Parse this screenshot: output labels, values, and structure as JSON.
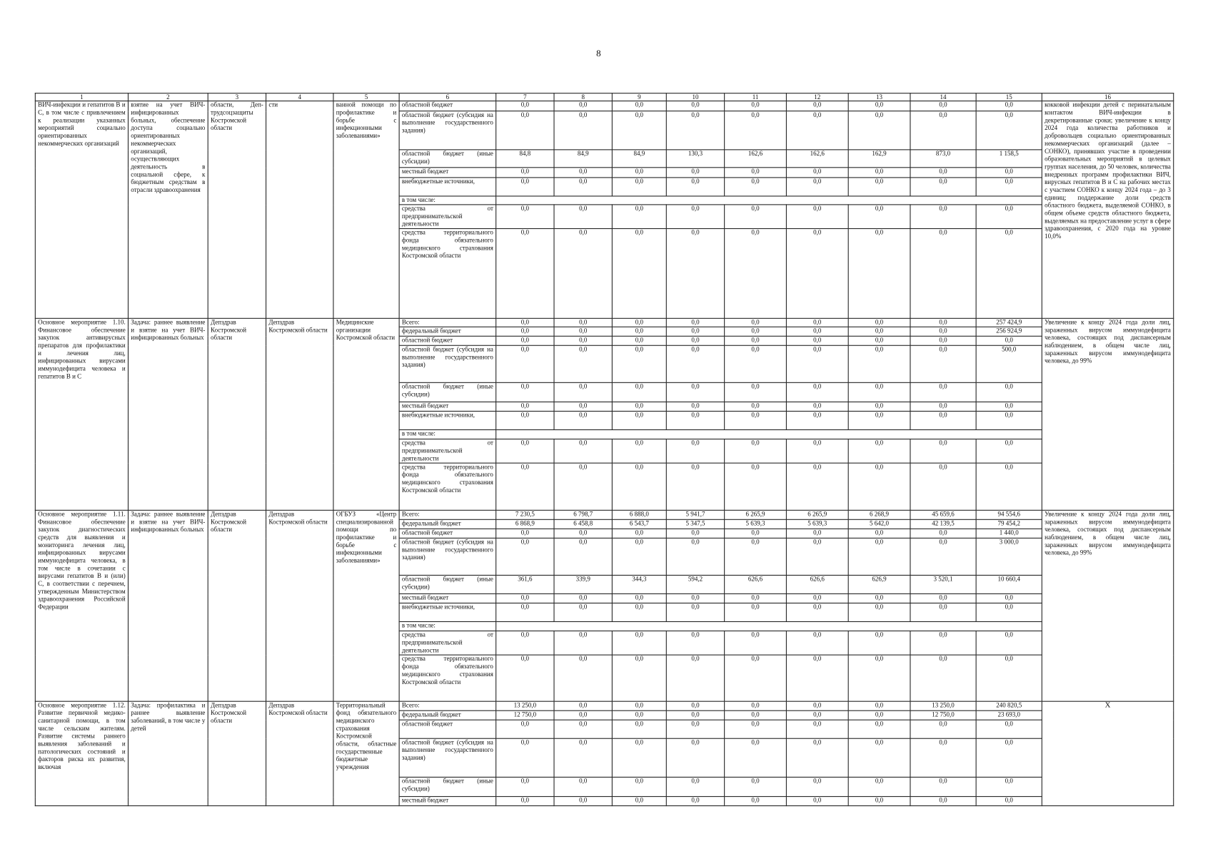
{
  "page_number": "8",
  "header": [
    "1",
    "2",
    "3",
    "4",
    "5",
    "6",
    "7",
    "8",
    "9",
    "10",
    "11",
    "12",
    "13",
    "14",
    "15",
    "16"
  ],
  "blocks": [
    {
      "c1": "ВИЧ-инфекции и гепатитов В и С, в том числе с привлечением к реализации указанных мероприятий социально ориентированных некоммерческих организаций",
      "c2": "взятие на учет ВИЧ-инфицированных больных, обеспечение доступа социально ориентированных некоммерческих организаций, осуществляющих деятельность в социальной сфере, к бюджетным средствам в отрасли здравоохранения",
      "c3": "области, Деп-трудсоцзащиты Костромской области",
      "c4": "сти",
      "c5": "ванной помощи по профилактике и борьбе с инфекционными заболеваниями»",
      "c16": "кокковой инфекции детей с перинатальным контактом ВИЧ-инфекции в декретированные сроки; увеличение к концу 2024 года количества работников и добровольцев социально ориентированных некоммерческих организаций (далее – СОНКО), принявших участие в проведении образовательных мероприятий в целевых группах населения, до 50 человек, количества внедренных программ профилактики ВИЧ, вирусных гепатитов В и С на рабочих местах с участием СОНКО к концу 2024 года – до 3 единиц; поддержание доли средств областного бюджета, выделяемой СОНКО, в общем объеме средств областного бюджета, выделяемых на предоставление услуг в сфере здравоохранения, с 2020 года на уровне 10,0%",
      "rows": [
        {
          "label": "областной бюджет",
          "values": [
            "0,0",
            "0,0",
            "0,0",
            "0,0",
            "0,0",
            "0,0",
            "0,0",
            "0,0",
            "0,0"
          ]
        },
        {
          "label": "областной бюджет (субсидия на выполнение государственного задания)",
          "values": [
            "0,0",
            "0,0",
            "0,0",
            "0,0",
            "0,0",
            "0,0",
            "0,0",
            "0,0",
            "0,0"
          ]
        },
        {
          "label": "областной бюджет (иные субсидии)",
          "values": [
            "84,8",
            "84,9",
            "84,9",
            "130,3",
            "162,6",
            "162,6",
            "162,9",
            "873,0",
            "1 158,5"
          ]
        },
        {
          "label": "местный бюджет",
          "values": [
            "0,0",
            "0,0",
            "0,0",
            "0,0",
            "0,0",
            "0,0",
            "0,0",
            "0,0",
            "0,0"
          ]
        },
        {
          "label": "внебюджетные источники,",
          "values": [
            "0,0",
            "0,0",
            "0,0",
            "0,0",
            "0,0",
            "0,0",
            "0,0",
            "0,0",
            "0,0"
          ]
        },
        {
          "label": "в том числе:"
        },
        {
          "label": "средства от предпринимательской деятельности",
          "values": [
            "0,0",
            "0,0",
            "0,0",
            "0,0",
            "0,0",
            "0,0",
            "0,0",
            "0,0",
            "0,0"
          ]
        },
        {
          "label": "средства территориального фонда обязательного медицинского страхования Костромской области",
          "values": [
            "0,0",
            "0,0",
            "0,0",
            "0,0",
            "0,0",
            "0,0",
            "0,0",
            "0,0",
            "0,0"
          ]
        }
      ]
    },
    {
      "c1": "Основное мероприятие 1.10. Финансовое обеспечение закупок антивирусных препаратов для профилактики и лечения лиц, инфицированных вирусами иммунодефицита человека и гепатитов В и С",
      "c2": "Задача: раннее выявление и взятие на учет ВИЧ-инфицированных больных",
      "c3": "Депздрав Костромской области",
      "c4": "Депздрав Костромской области",
      "c5": "Медицинские организации Костромской области",
      "c16": "Увеличение к концу 2024 года доли лиц, зараженных вирусом иммунодефицита человека, состоящих под диспансерным наблюдением, в общем числе лиц, зараженных вирусом иммунодефицита человека, до 99%",
      "rows": [
        {
          "label": "Всего:",
          "values": [
            "0,0",
            "0,0",
            "0,0",
            "0,0",
            "0,0",
            "0,0",
            "0,0",
            "0,0",
            "257 424,9"
          ]
        },
        {
          "label": "федеральный бюджет",
          "values": [
            "0,0",
            "0,0",
            "0,0",
            "0,0",
            "0,0",
            "0,0",
            "0,0",
            "0,0",
            "256 924,9"
          ]
        },
        {
          "label": "областной бюджет",
          "values": [
            "0,0",
            "0,0",
            "0,0",
            "0,0",
            "0,0",
            "0,0",
            "0,0",
            "0,0",
            "0,0"
          ]
        },
        {
          "label": "областной бюджет (субсидия на выполнение государственного задания)",
          "values": [
            "0,0",
            "0,0",
            "0,0",
            "0,0",
            "0,0",
            "0,0",
            "0,0",
            "0,0",
            "500,0"
          ]
        },
        {
          "label": "областной бюджет (иные субсидии)",
          "values": [
            "0,0",
            "0,0",
            "0,0",
            "0,0",
            "0,0",
            "0,0",
            "0,0",
            "0,0",
            "0,0"
          ]
        },
        {
          "label": "местный бюджет",
          "values": [
            "0,0",
            "0,0",
            "0,0",
            "0,0",
            "0,0",
            "0,0",
            "0,0",
            "0,0",
            "0,0"
          ]
        },
        {
          "label": "внебюджетные источники,",
          "values": [
            "0,0",
            "0,0",
            "0,0",
            "0,0",
            "0,0",
            "0,0",
            "0,0",
            "0,0",
            "0,0"
          ]
        },
        {
          "label": "в том числе:"
        },
        {
          "label": "средства от предпринимательской деятельности",
          "values": [
            "0,0",
            "0,0",
            "0,0",
            "0,0",
            "0,0",
            "0,0",
            "0,0",
            "0,0",
            "0,0"
          ]
        },
        {
          "label": "средства территориального фонда обязательного медицинского страхования Костромской области",
          "values": [
            "0,0",
            "0,0",
            "0,0",
            "0,0",
            "0,0",
            "0,0",
            "0,0",
            "0,0",
            "0,0"
          ]
        }
      ]
    },
    {
      "c1": "Основное мероприятие 1.11. Финансовое обеспечение закупок диагностических средств для выявления и мониторинга лечения лиц, инфицированных вирусами иммунодефицита человека, в том числе в сочетании с вирусами гепатитов В и (или) С, в соответствии с перечнем, утвержденным Министерством здравоохранения Российской Федерации",
      "c2": "Задача: раннее выявление и взятие на учет ВИЧ-инфицированных больных",
      "c3": "Депздрав Костромской области",
      "c4": "Депздрав Костромской области",
      "c5": "ОГБУЗ «Центр специализированной помощи по профилактике и борьбе с инфекционными заболеваниями»",
      "c16": "Увеличение к концу 2024 года доли лиц, зараженных вирусом иммунодефицита человека, состоящих под диспансерным наблюдением, в общем числе лиц, зараженных вирусом иммунодефицита человека, до 99%",
      "rows": [
        {
          "label": "Всего:",
          "values": [
            "7 230,5",
            "6 798,7",
            "6 888,0",
            "5 941,7",
            "6 265,9",
            "6 265,9",
            "6 268,9",
            "45 659,6",
            "94 554,6"
          ]
        },
        {
          "label": "федеральный бюджет",
          "values": [
            "6 868,9",
            "6 458,8",
            "6 543,7",
            "5 347,5",
            "5 639,3",
            "5 639,3",
            "5 642,0",
            "42 139,5",
            "79 454,2"
          ]
        },
        {
          "label": "областной бюджет",
          "values": [
            "0,0",
            "0,0",
            "0,0",
            "0,0",
            "0,0",
            "0,0",
            "0,0",
            "0,0",
            "1 440,0"
          ]
        },
        {
          "label": "областной бюджет (субсидия на выполнение государственного задания)",
          "values": [
            "0,0",
            "0,0",
            "0,0",
            "0,0",
            "0,0",
            "0,0",
            "0,0",
            "0,0",
            "3 000,0"
          ]
        },
        {
          "label": "областной бюджет (иные субсидии)",
          "values": [
            "361,6",
            "339,9",
            "344,3",
            "594,2",
            "626,6",
            "626,6",
            "626,9",
            "3 520,1",
            "10 660,4"
          ]
        },
        {
          "label": "местный бюджет",
          "values": [
            "0,0",
            "0,0",
            "0,0",
            "0,0",
            "0,0",
            "0,0",
            "0,0",
            "0,0",
            "0,0"
          ]
        },
        {
          "label": "внебюджетные источники,",
          "values": [
            "0,0",
            "0,0",
            "0,0",
            "0,0",
            "0,0",
            "0,0",
            "0,0",
            "0,0",
            "0,0"
          ]
        },
        {
          "label": "в том числе:"
        },
        {
          "label": "средства от предпринимательской деятельности",
          "values": [
            "0,0",
            "0,0",
            "0,0",
            "0,0",
            "0,0",
            "0,0",
            "0,0",
            "0,0",
            "0,0"
          ]
        },
        {
          "label": "средства территориального фонда обязательного медицинского страхования Костромской области",
          "values": [
            "0,0",
            "0,0",
            "0,0",
            "0,0",
            "0,0",
            "0,0",
            "0,0",
            "0,0",
            "0,0"
          ]
        }
      ]
    },
    {
      "c1": "Основное мероприятие 1.12. Развитие первичной медико-санитарной помощи, в том числе сельским жителям. Развитие системы раннего выявления заболеваний и патологических состояний и факторов риска их развития, включая",
      "c2": "Задача: профилактика и раннее выявление заболеваний, в том числе у детей",
      "c3": "Депздрав Костромской области",
      "c4": "Депздрав Костромской области",
      "c5": "Территориальный фонд обязательного медицинского страхования Костромской области, областные государственные бюджетные учреждения",
      "c16": "Х",
      "rows": [
        {
          "label": "Всего:",
          "values": [
            "13 250,0",
            "0,0",
            "0,0",
            "0,0",
            "0,0",
            "0,0",
            "0,0",
            "13 250,0",
            "240 820,5"
          ]
        },
        {
          "label": "федеральный бюджет",
          "values": [
            "12 750,0",
            "0,0",
            "0,0",
            "0,0",
            "0,0",
            "0,0",
            "0,0",
            "12 750,0",
            "23 693,0"
          ]
        },
        {
          "label": "областной бюджет",
          "values": [
            "0,0",
            "0,0",
            "0,0",
            "0,0",
            "0,0",
            "0,0",
            "0,0",
            "0,0",
            "0,0"
          ]
        },
        {
          "label": "областной бюджет (субсидия на выполнение государственного задания)",
          "values": [
            "0,0",
            "0,0",
            "0,0",
            "0,0",
            "0,0",
            "0,0",
            "0,0",
            "0,0",
            "0,0"
          ]
        },
        {
          "label": "областной бюджет (иные субсидии)",
          "values": [
            "0,0",
            "0,0",
            "0,0",
            "0,0",
            "0,0",
            "0,0",
            "0,0",
            "0,0",
            "0,0"
          ]
        },
        {
          "label": "местный бюджет",
          "values": [
            "0,0",
            "0,0",
            "0,0",
            "0,0",
            "0,0",
            "0,0",
            "0,0",
            "0,0",
            "0,0"
          ]
        }
      ]
    }
  ]
}
